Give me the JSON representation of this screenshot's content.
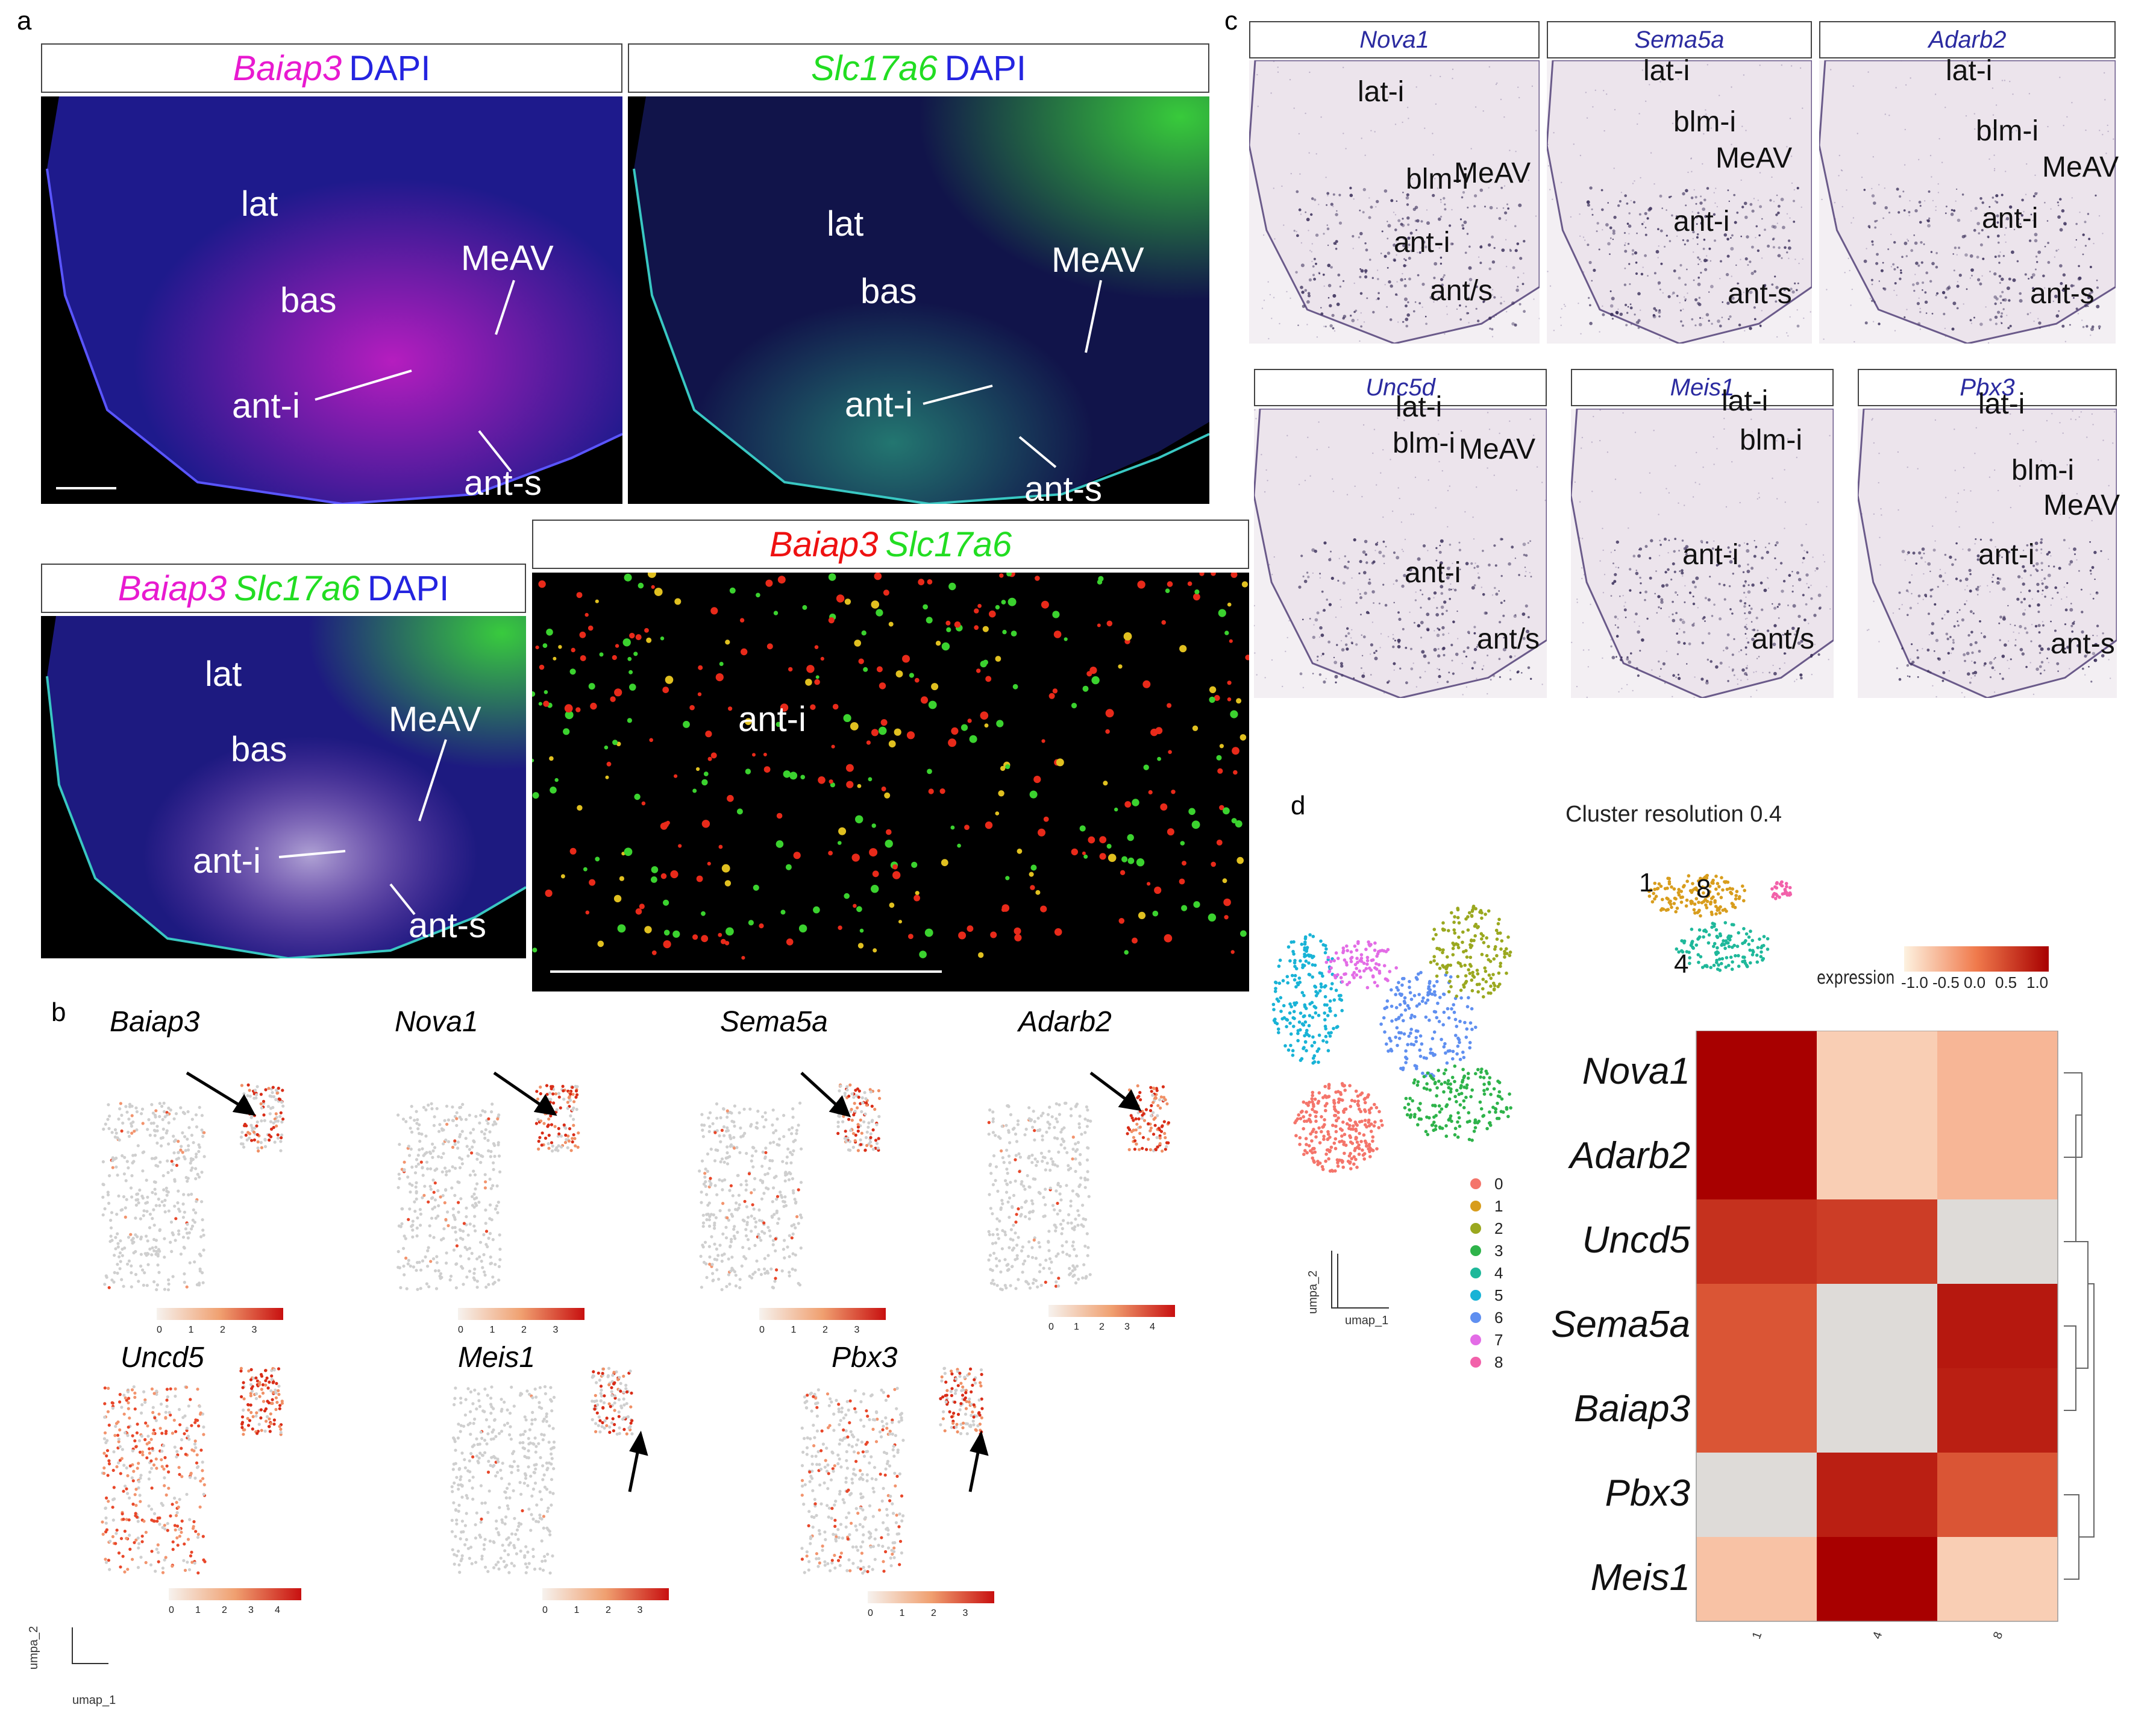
{
  "panel_labels": {
    "a": "a",
    "b": "b",
    "c": "c",
    "d": "d"
  },
  "panel_a": {
    "img1": {
      "title_parts": [
        {
          "text": "Baiap3",
          "style": "it mag"
        },
        {
          "text": "DAPI",
          "style": "blu"
        }
      ],
      "regions": {
        "lat": "lat",
        "bas": "bas",
        "meav": "MeAV",
        "anti": "ant-i",
        "ants": "ant-s"
      }
    },
    "img2": {
      "title_parts": [
        {
          "text": "Slc17a6",
          "style": "it grn"
        },
        {
          "text": "DAPI",
          "style": "blu"
        }
      ],
      "regions": {
        "lat": "lat",
        "bas": "bas",
        "meav": "MeAV",
        "anti": "ant-i",
        "ants": "ant-s"
      }
    },
    "img3": {
      "title_parts": [
        {
          "text": "Baiap3",
          "style": "it mag"
        },
        {
          "text": "Slc17a6",
          "style": "it grn"
        },
        {
          "text": "DAPI",
          "style": "blu"
        }
      ],
      "regions": {
        "lat": "lat",
        "bas": "bas",
        "meav": "MeAV",
        "anti": "ant-i",
        "ants": "ant-s"
      }
    },
    "img4": {
      "title_parts": [
        {
          "text": "Baiap3",
          "style": "it red"
        },
        {
          "text": "Slc17a6",
          "style": "it grn"
        }
      ],
      "regions": {
        "anti": "ant-i"
      }
    }
  },
  "panel_b": {
    "genes": [
      "Baiap3",
      "Nova1",
      "Sema5a",
      "Adarb2",
      "Uncd5",
      "Meis1",
      "Pbx3"
    ],
    "scales": [
      [
        "0",
        "1",
        "2",
        "3"
      ],
      [
        "0",
        "1",
        "2",
        "3"
      ],
      [
        "0",
        "1",
        "2",
        "3"
      ],
      [
        "0",
        "1",
        "2",
        "3",
        "4"
      ],
      [
        "0",
        "1",
        "2",
        "3",
        "4"
      ],
      [
        "0",
        "1",
        "2",
        "3"
      ],
      [
        "0",
        "1",
        "2",
        "3"
      ]
    ],
    "axis": {
      "y": "umpa_2",
      "x": "umap_1"
    }
  },
  "panel_c": {
    "images": [
      {
        "title": "Nova1",
        "labels": {
          "a": "lat-i",
          "b": "blm-i",
          "c": "MeAV",
          "d": "ant-i",
          "e": "ant/s"
        }
      },
      {
        "title": "Sema5a",
        "labels": {
          "a": "lat-i",
          "b": "blm-i",
          "c": "MeAV",
          "d": "ant-i",
          "e": "ant-s"
        }
      },
      {
        "title": "Adarb2",
        "labels": {
          "a": "lat-i",
          "b": "blm-i",
          "c": "MeAV",
          "d": "ant-i",
          "e": "ant-s"
        }
      },
      {
        "title": "Unc5d",
        "labels": {
          "a": "lat-i",
          "b": "blm-i",
          "c": "MeAV",
          "d": "ant-i",
          "e": "ant/s"
        }
      },
      {
        "title": "Meis1",
        "labels": {
          "a": "lat-i",
          "b": "blm-i",
          "d": "ant-i",
          "e": "ant/s"
        }
      },
      {
        "title": "Pbx3",
        "labels": {
          "a": "lat-i",
          "b": "blm-i",
          "c": "MeAV",
          "d": "ant-i",
          "e": "ant-s"
        }
      }
    ]
  },
  "panel_d": {
    "cluster_title": "Cluster resolution 0.4",
    "cluster_nums": {
      "c1": "1",
      "c8": "8",
      "c4": "4"
    },
    "legend": [
      {
        "label": "0",
        "color": "#f4756b"
      },
      {
        "label": "1",
        "color": "#d89d1d"
      },
      {
        "label": "2",
        "color": "#9aa81f"
      },
      {
        "label": "3",
        "color": "#2eb34a"
      },
      {
        "label": "4",
        "color": "#1fb89a"
      },
      {
        "label": "5",
        "color": "#19b3d6"
      },
      {
        "label": "6",
        "color": "#5f8ff0"
      },
      {
        "label": "7",
        "color": "#e36ce6"
      },
      {
        "label": "8",
        "color": "#f261aa"
      }
    ],
    "axis": {
      "y": "umpa_2",
      "x": "umap_1"
    },
    "heatmap": {
      "type": "heatmap",
      "scale_label": "expression",
      "scale_ticks": [
        "-1.0",
        "-0.5",
        "0.0",
        "0.5",
        "1.0"
      ],
      "rows": [
        "Nova1",
        "Adarb2",
        "Uncd5",
        "Sema5a",
        "Baiap3",
        "Pbx3",
        "Meis1"
      ],
      "cols": [
        "1",
        "4",
        "8"
      ],
      "values": [
        [
          1.0,
          -0.7,
          -0.5
        ],
        [
          1.0,
          -0.7,
          -0.5
        ],
        [
          0.6,
          0.5,
          null
        ],
        [
          0.3,
          null,
          0.8
        ],
        [
          0.3,
          null,
          0.75
        ],
        [
          null,
          0.75,
          0.3
        ],
        [
          -0.6,
          1.0,
          -0.7
        ]
      ]
    }
  }
}
